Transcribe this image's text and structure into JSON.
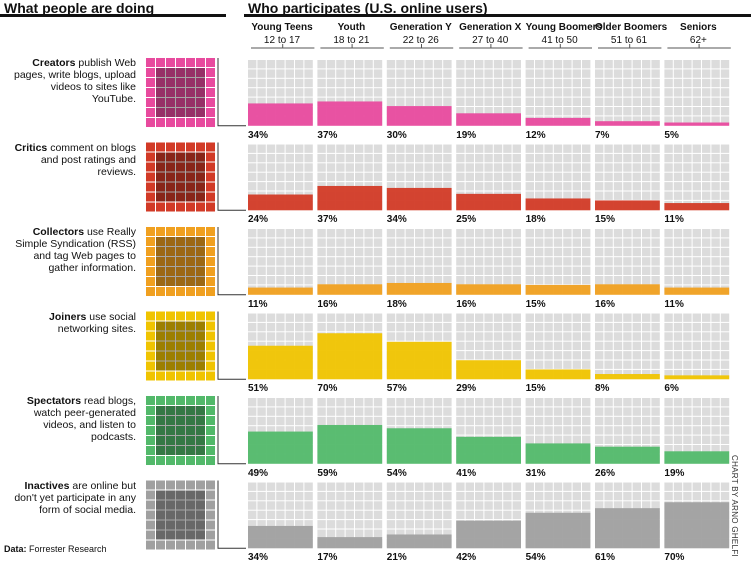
{
  "header": {
    "left_title": "What people are doing",
    "right_title": "Who participates (U.S. online users)"
  },
  "footer": {
    "source_label": "Data:",
    "source_name": "Forrester Research"
  },
  "credit": "CHART BY ARNO GHELFI",
  "colors": {
    "grid": "#dcdcdc",
    "creators": "#e84a9e",
    "critics": "#d23a26",
    "collectors": "#f0a020",
    "joiners": "#f0c400",
    "spectators": "#52b96a",
    "inactives": "#a0a0a0"
  },
  "chart_data": {
    "type": "bar",
    "unit": "%",
    "categories": [
      {
        "name": "Young Teens",
        "ages": "12 to 17"
      },
      {
        "name": "Youth",
        "ages": "18 to 21"
      },
      {
        "name": "Generation Y",
        "ages": "22 to 26"
      },
      {
        "name": "Generation X",
        "ages": "27 to 40"
      },
      {
        "name": "Young Boomers",
        "ages": "41 to 50"
      },
      {
        "name": "Older Boomers",
        "ages": "51 to 61"
      },
      {
        "name": "Seniors",
        "ages": "62+"
      }
    ],
    "series": [
      {
        "name": "Creators",
        "description": "publish Web pages, write blogs, upload videos to sites like YouTube.",
        "color_key": "creators",
        "values": [
          34,
          37,
          30,
          19,
          12,
          7,
          5
        ],
        "labels": [
          "34%",
          "37%",
          "30%",
          "19%",
          "12%",
          "7%",
          "5%"
        ]
      },
      {
        "name": "Critics",
        "description": "comment on blogs and post ratings and reviews.",
        "color_key": "critics",
        "values": [
          24,
          37,
          34,
          25,
          18,
          15,
          11
        ],
        "labels": [
          "24%",
          "37%",
          "34%",
          "25%",
          "18%",
          "15%",
          "11%"
        ]
      },
      {
        "name": "Collectors",
        "description": "use Really Simple Syndication (RSS) and tag Web pages to gather information.",
        "color_key": "collectors",
        "values": [
          11,
          16,
          18,
          16,
          15,
          16,
          11
        ],
        "labels": [
          "11%",
          "16%",
          "18%",
          "16%",
          "15%",
          "16%",
          "11%"
        ]
      },
      {
        "name": "Joiners",
        "description": "use social networking sites.",
        "color_key": "joiners",
        "values": [
          51,
          70,
          57,
          29,
          15,
          8,
          6
        ],
        "labels": [
          "51%",
          "70%",
          "57%",
          "29%",
          "15%",
          "8%",
          "6%"
        ]
      },
      {
        "name": "Spectators",
        "description": "read blogs, watch peer-generated videos, and listen to podcasts.",
        "color_key": "spectators",
        "values": [
          49,
          59,
          54,
          41,
          31,
          26,
          19
        ],
        "labels": [
          "49%",
          "59%",
          "54%",
          "41%",
          "31%",
          "26%",
          "19%"
        ]
      },
      {
        "name": "Inactives",
        "description": "are online but don't yet participate in any form of social media.",
        "color_key": "inactives",
        "values": [
          34,
          17,
          21,
          42,
          54,
          61,
          70
        ],
        "labels": [
          "34%",
          "17%",
          "21%",
          "42%",
          "54%",
          "61%",
          "70%"
        ]
      }
    ]
  }
}
